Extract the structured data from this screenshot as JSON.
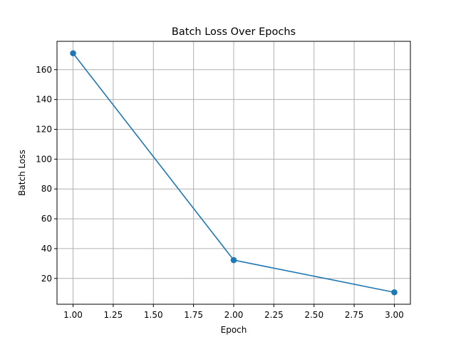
{
  "chart_data": {
    "type": "line",
    "title": "Batch Loss Over Epochs",
    "xlabel": "Epoch",
    "ylabel": "Batch Loss",
    "x": [
      1.0,
      2.0,
      3.0
    ],
    "series": [
      {
        "values": [
          171.0,
          32.3,
          10.7
        ],
        "color": "#1f77b4",
        "marker": "circle"
      }
    ],
    "xlim": [
      0.9,
      3.1
    ],
    "ylim": [
      2.7,
      179.0
    ],
    "xticks": [
      "1.00",
      "1.25",
      "1.50",
      "1.75",
      "2.00",
      "2.25",
      "2.50",
      "2.75",
      "3.00"
    ],
    "yticks": [
      "20",
      "40",
      "60",
      "80",
      "100",
      "120",
      "140",
      "160"
    ],
    "grid": true,
    "grid_color": "#b0b0b0"
  }
}
